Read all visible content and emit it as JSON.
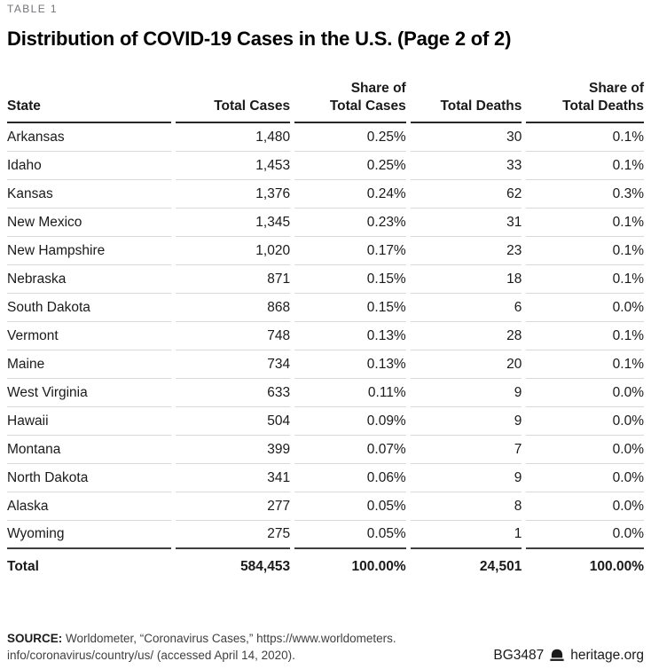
{
  "page": {
    "eyebrow": "TABLE 1",
    "title": "Distribution of COVID-19 Cases in the U.S. (Page 2 of 2)"
  },
  "table": {
    "header_labels": [
      "State",
      "Total Cases",
      "Share of\nTotal Cases",
      "Total Deaths",
      "Share of\nTotal Deaths"
    ]
  },
  "chart_data": {
    "type": "table",
    "title": "Distribution of COVID-19 Cases in the U.S. (Page 2 of 2)",
    "columns": [
      "State",
      "Total Cases",
      "Share of Total Cases",
      "Total Deaths",
      "Share of Total Deaths"
    ],
    "rows": [
      [
        "Arkansas",
        "1,480",
        "0.25%",
        "30",
        "0.1%"
      ],
      [
        "Idaho",
        "1,453",
        "0.25%",
        "33",
        "0.1%"
      ],
      [
        "Kansas",
        "1,376",
        "0.24%",
        "62",
        "0.3%"
      ],
      [
        "New Mexico",
        "1,345",
        "0.23%",
        "31",
        "0.1%"
      ],
      [
        "New Hampshire",
        "1,020",
        "0.17%",
        "23",
        "0.1%"
      ],
      [
        "Nebraska",
        "871",
        "0.15%",
        "18",
        "0.1%"
      ],
      [
        "South Dakota",
        "868",
        "0.15%",
        "6",
        "0.0%"
      ],
      [
        "Vermont",
        "748",
        "0.13%",
        "28",
        "0.1%"
      ],
      [
        "Maine",
        "734",
        "0.13%",
        "20",
        "0.1%"
      ],
      [
        "West Virginia",
        "633",
        "0.11%",
        "9",
        "0.0%"
      ],
      [
        "Hawaii",
        "504",
        "0.09%",
        "9",
        "0.0%"
      ],
      [
        "Montana",
        "399",
        "0.07%",
        "7",
        "0.0%"
      ],
      [
        "North Dakota",
        "341",
        "0.06%",
        "9",
        "0.0%"
      ],
      [
        "Alaska",
        "277",
        "0.05%",
        "8",
        "0.0%"
      ],
      [
        "Wyoming",
        "275",
        "0.05%",
        "1",
        "0.0%"
      ]
    ],
    "total_row": [
      "Total",
      "584,453",
      "100.00%",
      "24,501",
      "100.00%"
    ]
  },
  "footer": {
    "source_label": "SOURCE:",
    "source_line1": " Worldometer, “Coronavirus Cases,” https://www.worldometers.",
    "source_line2": "info/coronavirus/country/us/ (accessed April 14, 2020).",
    "doc_id": "BG3487",
    "bell_icon": "liberty-bell-icon",
    "site": "heritage.org"
  },
  "colors": {
    "background": "#ffffff",
    "eyebrow_text": "#75757a",
    "title_text": "#000000",
    "body_text": "#1a1a1a",
    "row_divider": "#d9d9d9",
    "header_rule": "#262626",
    "total_rule": "#3e3e3e",
    "source_text": "#404040"
  }
}
